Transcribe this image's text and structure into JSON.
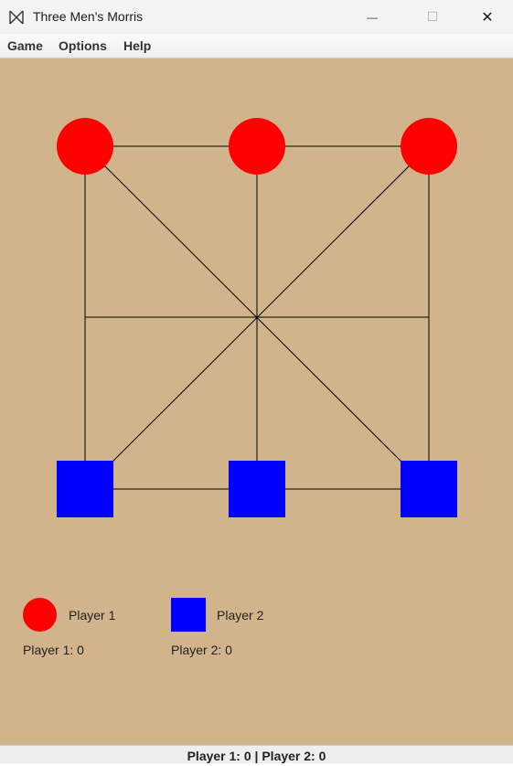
{
  "window": {
    "title": "Three Men's Morris",
    "minimize_glyph": "—",
    "maximize_glyph": "☐",
    "close_glyph": "✕"
  },
  "menu": {
    "items": [
      "Game",
      "Options",
      "Help"
    ]
  },
  "board": {
    "background": "#d2b48c",
    "line_color": "#000000",
    "pieces": [
      {
        "player": 1,
        "shape": "circle",
        "color": "#ff0000",
        "cell": "top-left"
      },
      {
        "player": 1,
        "shape": "circle",
        "color": "#ff0000",
        "cell": "top-center"
      },
      {
        "player": 1,
        "shape": "circle",
        "color": "#ff0000",
        "cell": "top-right"
      },
      {
        "player": 2,
        "shape": "square",
        "color": "#0000ff",
        "cell": "bottom-left"
      },
      {
        "player": 2,
        "shape": "square",
        "color": "#0000ff",
        "cell": "bottom-center"
      },
      {
        "player": 2,
        "shape": "square",
        "color": "#0000ff",
        "cell": "bottom-right"
      }
    ]
  },
  "legend": {
    "player1": {
      "label": "Player 1",
      "color": "#ff0000",
      "score_text": "Player 1: 0"
    },
    "player2": {
      "label": "Player 2",
      "color": "#0000ff",
      "score_text": "Player 2: 0"
    }
  },
  "status": {
    "text": "Player 1: 0 | Player 2: 0"
  }
}
